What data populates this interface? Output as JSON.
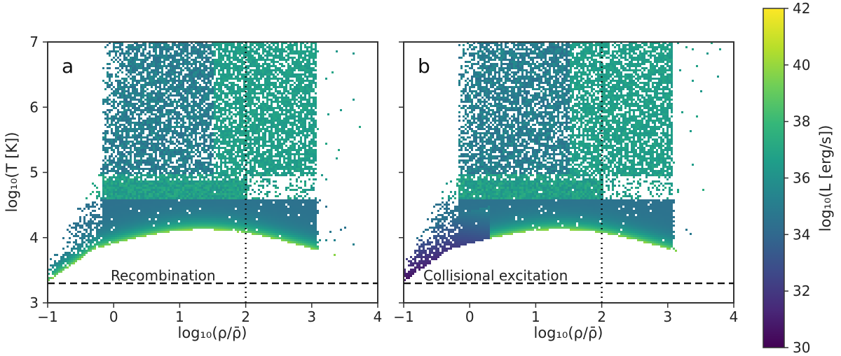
{
  "chart_data": {
    "type": "heatmap",
    "panels": [
      {
        "panel_label": "a",
        "annotation": "Recombination",
        "xlabel": "log₁₀(ρ/ρ̄)",
        "ylabel": "log₁₀(T [K])",
        "xlim": [
          -1,
          4
        ],
        "ylim": [
          3,
          7
        ],
        "xticks": [
          "−1",
          "0",
          "1",
          "2",
          "3",
          "4"
        ],
        "yticks": [
          "3",
          "4",
          "5",
          "6",
          "7"
        ],
        "vertical_dotted_line_x": 2,
        "horizontal_dashed_line_y": 3.3,
        "ridge_peak_value": 40
      },
      {
        "panel_label": "b",
        "annotation": "Collisional excitation",
        "xlabel": "log₁₀(ρ/ρ̄)",
        "xlim": [
          -1,
          4
        ],
        "ylim": [
          3,
          7
        ],
        "xticks": [
          "−1",
          "0",
          "1",
          "2",
          "3",
          "4"
        ],
        "vertical_dotted_line_x": 2,
        "horizontal_dashed_line_y": 3.3,
        "ridge_peak_value": 40
      }
    ],
    "colorbar": {
      "label": "log₁₀(L [erg/s])",
      "range": [
        30,
        42
      ],
      "ticks": [
        "30",
        "32",
        "34",
        "36",
        "38",
        "40",
        "42"
      ],
      "colormap": "viridis",
      "colors": [
        "#440154",
        "#482878",
        "#3e4989",
        "#31688e",
        "#26828e",
        "#1f9e89",
        "#35b779",
        "#6ece58",
        "#b5de2b",
        "#fde725"
      ]
    }
  }
}
